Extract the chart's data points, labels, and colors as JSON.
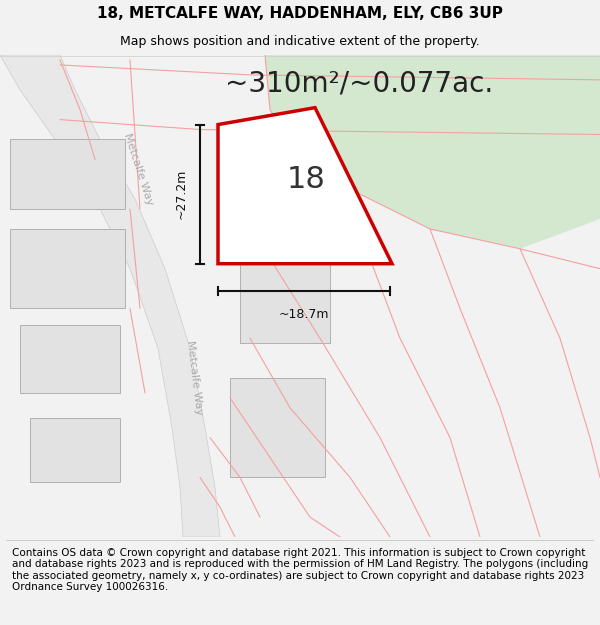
{
  "title_line1": "18, METCALFE WAY, HADDENHAM, ELY, CB6 3UP",
  "title_line2": "Map shows position and indicative extent of the property.",
  "area_text": "~310m²/~0.077ac.",
  "dim_vertical": "~27.2m",
  "dim_horizontal": "~18.7m",
  "label_18": "18",
  "road_label": "Metcalfe Way",
  "footer_text": "Contains OS data © Crown copyright and database right 2021. This information is subject to Crown copyright and database rights 2023 and is reproduced with the permission of HM Land Registry. The polygons (including the associated geometry, namely x, y co-ordinates) are subject to Crown copyright and database rights 2023 Ordnance Survey 100026316.",
  "bg_color": "#f2f2f2",
  "map_bg": "#ffffff",
  "road_color": "#e8e8e8",
  "road_edge_color": "#cccccc",
  "plot_fill": "#ffffff",
  "plot_edge": "#cc0000",
  "green_fill": "#d4e8d0",
  "building_fill": "#e2e2e2",
  "building_edge": "#b0b0b0",
  "boundary_color": "#f5a0a0",
  "boundary_thin": "#f0b8b8",
  "dim_line_color": "#111111",
  "title_fontsize": 11,
  "subtitle_fontsize": 9,
  "area_fontsize": 20,
  "label_fontsize": 22,
  "footer_fontsize": 7.5,
  "road_label_color": "#aaaaaa",
  "road_label_size": 8
}
